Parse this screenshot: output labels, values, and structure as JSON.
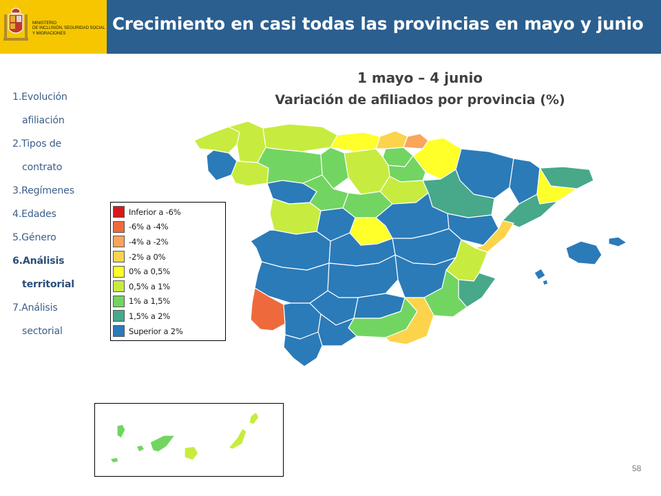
{
  "header": {
    "ministry_lines": [
      "MINISTERIO",
      "DE INCLUSIÓN, SEGURIDAD SOCIAL",
      "Y MIGRACIONES"
    ],
    "title": "Crecimiento en casi todas las provincias en mayo y junio",
    "colors": {
      "logo_bg": "#f6c700",
      "title_bg": "#2b5f8f",
      "title_text": "#ffffff"
    }
  },
  "nav": {
    "items": [
      {
        "number_label": "1.Evolución",
        "second_line": "afiliación",
        "active": false
      },
      {
        "number_label": "2.Tipos de",
        "second_line": "contrato",
        "active": false
      },
      {
        "number_label": "3.Regímenes",
        "second_line": "",
        "active": false
      },
      {
        "number_label": "4.Edades",
        "second_line": "",
        "active": false
      },
      {
        "number_label": "5.Género",
        "second_line": "",
        "active": false
      },
      {
        "number_label": "6.Análisis",
        "second_line": "territorial",
        "active": true
      },
      {
        "number_label": "7.Análisis",
        "second_line": "sectorial",
        "active": false
      }
    ]
  },
  "map": {
    "title_line1": "1 mayo – 4 junio",
    "title_line2": "Variación de afiliados por provincia (%)",
    "legend": [
      {
        "label": "Inferior a -6%",
        "color": "#d7191c"
      },
      {
        "label": "-6% a -4%",
        "color": "#ee6a3c"
      },
      {
        "label": "-4% a -2%",
        "color": "#f9a55c"
      },
      {
        "label": "-2% a 0%",
        "color": "#fbd44c"
      },
      {
        "label": "0% a 0,5%",
        "color": "#ffff2a"
      },
      {
        "label": "0,5% a 1%",
        "color": "#c7ec3f"
      },
      {
        "label": "1% a 1,5%",
        "color": "#72d562"
      },
      {
        "label": "1,5% a 2%",
        "color": "#47a88a"
      },
      {
        "label": "Superior a 2%",
        "color": "#2b7bb9"
      }
    ]
  },
  "footer": {
    "page_number": "58"
  }
}
